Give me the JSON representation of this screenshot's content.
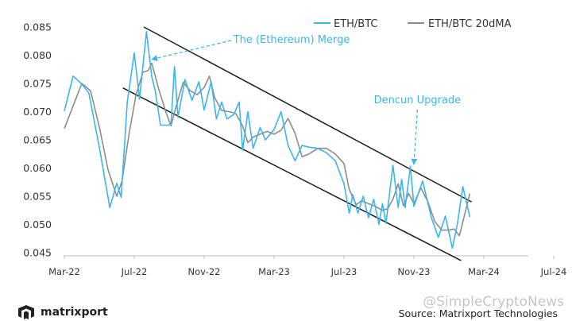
{
  "chart_data": {
    "type": "line",
    "x_ticks": [
      "Mar-22",
      "Jul-22",
      "Nov-22",
      "Mar-23",
      "Jul-23",
      "Nov-23",
      "Mar-24",
      "Jul-24"
    ],
    "y_ticks": [
      "0.085",
      "0.080",
      "0.075",
      "0.070",
      "0.065",
      "0.060",
      "0.055",
      "0.050",
      "0.045"
    ],
    "ylim": [
      0.045,
      0.086
    ],
    "xlim": [
      0,
      28
    ],
    "legend_position": "top-right",
    "grid": false,
    "series": [
      {
        "name": "ETH/BTC",
        "color": "#39b6ee",
        "points": [
          [
            0.0,
            0.0701
          ],
          [
            0.5,
            0.0763
          ],
          [
            1.0,
            0.0749
          ],
          [
            1.4,
            0.0733
          ],
          [
            2.0,
            0.0637
          ],
          [
            2.6,
            0.053
          ],
          [
            3.0,
            0.0573
          ],
          [
            3.25,
            0.0548
          ],
          [
            3.6,
            0.0717
          ],
          [
            4.0,
            0.0804
          ],
          [
            4.3,
            0.0722
          ],
          [
            4.7,
            0.0842
          ],
          [
            5.0,
            0.0762
          ],
          [
            5.2,
            0.0737
          ],
          [
            5.5,
            0.0676
          ],
          [
            5.9,
            0.0676
          ],
          [
            6.1,
            0.0677
          ],
          [
            6.3,
            0.078
          ],
          [
            6.5,
            0.069
          ],
          [
            6.9,
            0.0757
          ],
          [
            7.3,
            0.072
          ],
          [
            7.7,
            0.0753
          ],
          [
            8.0,
            0.0703
          ],
          [
            8.4,
            0.0753
          ],
          [
            8.7,
            0.0687
          ],
          [
            9.0,
            0.0717
          ],
          [
            9.3,
            0.0687
          ],
          [
            9.7,
            0.0695
          ],
          [
            10.0,
            0.0717
          ],
          [
            10.2,
            0.0632
          ],
          [
            10.5,
            0.07
          ],
          [
            10.8,
            0.0635
          ],
          [
            11.2,
            0.0672
          ],
          [
            11.5,
            0.065
          ],
          [
            12.0,
            0.0668
          ],
          [
            12.4,
            0.07
          ],
          [
            12.8,
            0.064
          ],
          [
            13.2,
            0.0613
          ],
          [
            13.6,
            0.064
          ],
          [
            14.0,
            0.0637
          ],
          [
            14.5,
            0.0635
          ],
          [
            15.0,
            0.0627
          ],
          [
            15.5,
            0.0613
          ],
          [
            16.0,
            0.0572
          ],
          [
            16.3,
            0.052
          ],
          [
            16.5,
            0.0553
          ],
          [
            16.8,
            0.052
          ],
          [
            17.1,
            0.055
          ],
          [
            17.4,
            0.0512
          ],
          [
            17.7,
            0.0545
          ],
          [
            18.0,
            0.05
          ],
          [
            18.2,
            0.0537
          ],
          [
            18.4,
            0.0502
          ],
          [
            18.8,
            0.0605
          ],
          [
            19.1,
            0.053
          ],
          [
            19.3,
            0.058
          ],
          [
            19.5,
            0.053
          ],
          [
            19.8,
            0.0603
          ],
          [
            20.0,
            0.0532
          ],
          [
            20.5,
            0.0577
          ],
          [
            21.0,
            0.0512
          ],
          [
            21.4,
            0.0477
          ],
          [
            21.8,
            0.0515
          ],
          [
            22.2,
            0.0458
          ],
          [
            22.5,
            0.0503
          ],
          [
            22.8,
            0.0567
          ],
          [
            23.2,
            0.0513
          ]
        ]
      },
      {
        "name": "ETH/BTC 20dMA",
        "color": "#8c8c8c",
        "points": [
          [
            0.0,
            0.067
          ],
          [
            0.6,
            0.0718
          ],
          [
            1.0,
            0.075
          ],
          [
            1.5,
            0.0737
          ],
          [
            2.0,
            0.0673
          ],
          [
            2.5,
            0.0597
          ],
          [
            3.0,
            0.055
          ],
          [
            3.3,
            0.0577
          ],
          [
            3.7,
            0.066
          ],
          [
            4.1,
            0.073
          ],
          [
            4.5,
            0.077
          ],
          [
            4.8,
            0.0773
          ],
          [
            5.0,
            0.0786
          ],
          [
            5.4,
            0.074
          ],
          [
            5.8,
            0.07
          ],
          [
            6.1,
            0.0675
          ],
          [
            6.4,
            0.071
          ],
          [
            6.8,
            0.0752
          ],
          [
            7.2,
            0.0737
          ],
          [
            7.6,
            0.073
          ],
          [
            8.0,
            0.0743
          ],
          [
            8.3,
            0.0763
          ],
          [
            8.6,
            0.0725
          ],
          [
            9.0,
            0.0702
          ],
          [
            9.4,
            0.07
          ],
          [
            9.8,
            0.0697
          ],
          [
            10.2,
            0.0675
          ],
          [
            10.5,
            0.0645
          ],
          [
            10.8,
            0.0655
          ],
          [
            11.2,
            0.066
          ],
          [
            11.6,
            0.0665
          ],
          [
            12.0,
            0.066
          ],
          [
            12.4,
            0.0667
          ],
          [
            12.8,
            0.0688
          ],
          [
            13.2,
            0.0662
          ],
          [
            13.6,
            0.062
          ],
          [
            14.0,
            0.0625
          ],
          [
            14.5,
            0.0635
          ],
          [
            15.0,
            0.0635
          ],
          [
            15.5,
            0.0625
          ],
          [
            16.0,
            0.0608
          ],
          [
            16.3,
            0.0562
          ],
          [
            16.7,
            0.0535
          ],
          [
            17.0,
            0.0542
          ],
          [
            17.4,
            0.0537
          ],
          [
            17.8,
            0.0532
          ],
          [
            18.2,
            0.0525
          ],
          [
            18.5,
            0.0528
          ],
          [
            18.8,
            0.0545
          ],
          [
            19.1,
            0.0572
          ],
          [
            19.4,
            0.0533
          ],
          [
            19.7,
            0.0555
          ],
          [
            20.0,
            0.0537
          ],
          [
            20.4,
            0.0565
          ],
          [
            20.8,
            0.054
          ],
          [
            21.2,
            0.0505
          ],
          [
            21.6,
            0.049
          ],
          [
            22.0,
            0.049
          ],
          [
            22.3,
            0.0492
          ],
          [
            22.6,
            0.048
          ],
          [
            22.9,
            0.0517
          ],
          [
            23.2,
            0.0555
          ]
        ]
      }
    ],
    "trend_lines": [
      {
        "x1": 4.55,
        "y1": 0.085,
        "x2": 23.3,
        "y2": 0.054
      },
      {
        "x1": 3.35,
        "y1": 0.0742,
        "x2": 22.7,
        "y2": 0.0436
      }
    ],
    "annotations": [
      {
        "text": "The (Ethereum) Merge",
        "x": 13.0,
        "y": 0.0822,
        "arrow_to_x": 5.05,
        "arrow_to_y": 0.0793
      },
      {
        "text": "Dencun Upgrade",
        "x": 20.2,
        "y": 0.0715,
        "arrow_to_x": 20.0,
        "arrow_to_y": 0.0608
      }
    ]
  },
  "brand": {
    "name": "matrixport"
  },
  "source": "Source: Matrixport Technologies",
  "watermark": "@SimpleCryptoNews"
}
